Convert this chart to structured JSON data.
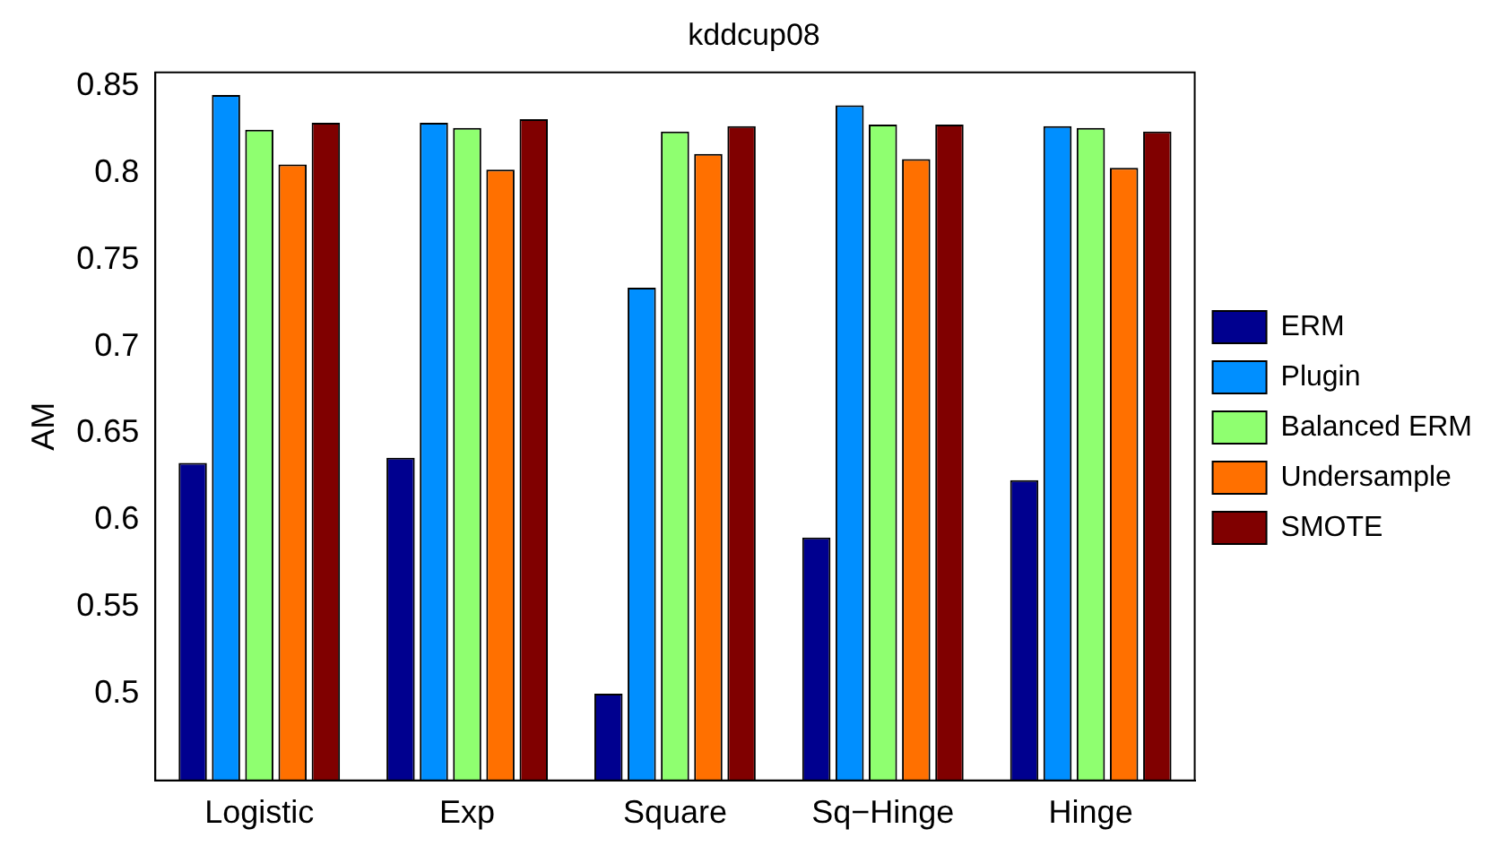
{
  "chart_data": {
    "type": "bar",
    "title": "kddcup08",
    "ylabel": "AM",
    "categories": [
      "Logistic",
      "Exp",
      "Square",
      "Sq−Hinge",
      "Hinge"
    ],
    "series": [
      {
        "name": "ERM",
        "color": "#00008f",
        "values": [
          0.633,
          0.636,
          0.5,
          0.59,
          0.623
        ]
      },
      {
        "name": "Plugin",
        "color": "#008fff",
        "values": [
          0.845,
          0.829,
          0.734,
          0.839,
          0.827
        ]
      },
      {
        "name": "Balanced ERM",
        "color": "#8fff70",
        "values": [
          0.825,
          0.826,
          0.824,
          0.828,
          0.826
        ]
      },
      {
        "name": "Undersample",
        "color": "#ff7000",
        "values": [
          0.805,
          0.802,
          0.811,
          0.808,
          0.803
        ]
      },
      {
        "name": "SMOTE",
        "color": "#800000",
        "values": [
          0.829,
          0.831,
          0.827,
          0.828,
          0.824
        ]
      }
    ],
    "ylim": [
      0.45,
      0.858
    ],
    "yticks": [
      0.5,
      0.55,
      0.6,
      0.65,
      0.7,
      0.75,
      0.8,
      0.85
    ],
    "grid": false,
    "legend": "right"
  }
}
